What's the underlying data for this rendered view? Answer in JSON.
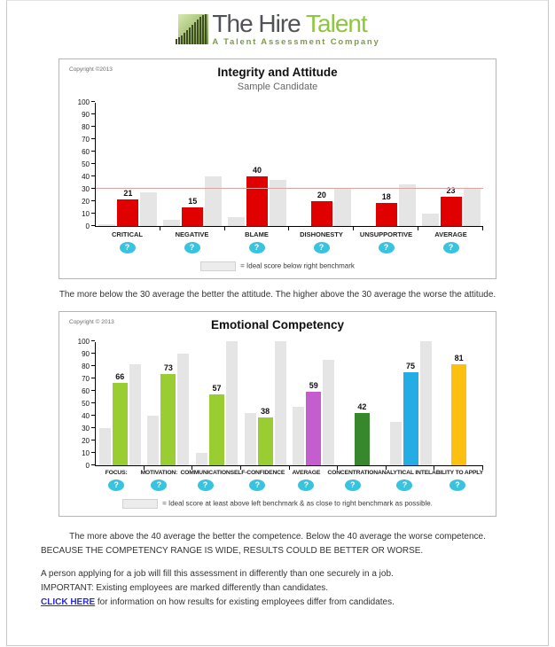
{
  "page": {
    "logo": {
      "title_primary": "The Hire",
      "title_accent": "Talent",
      "subtitle": "A Talent Assessment Company"
    },
    "help_icon_glyph": "?",
    "notes": {
      "attitude": "The more below the 30 average the better the attitude. The higher above the 30 average the worse the attitude.",
      "competence": "The more above the 40 average the better the competence. Below the 40 average the worse competence.",
      "range": "BECAUSE THE COMPETENCY RANGE IS WIDE, RESULTS COULD BE BETTER OR WORSE.",
      "applying": "A person applying for a job will fill this assessment in differently than one securely in a job.",
      "important": "IMPORTANT: Existing employees are marked differently than candidates.",
      "link_text": "CLICK HERE",
      "link_rest": " for information on how results for existing employees differ from candidates."
    },
    "colors": {
      "accent_green": "#8dc63f",
      "score_red": "#e10000",
      "benchmark_gray": "#e5e5e5",
      "help_cyan": "#38c3de",
      "link_blue": "#2b2bd4",
      "benchmark_line_pink": "#dba4a4"
    }
  },
  "chart_data": [
    {
      "type": "bar",
      "copyright": "Copyright ©2013",
      "title": "Integrity and Attitude",
      "subtitle": "Sample Candidate",
      "categories": [
        "CRITICAL",
        "NEGATIVE",
        "BLAME",
        "DISHONESTY",
        "UNSUPPORTIVE",
        "AVERAGE"
      ],
      "series": [
        {
          "name": "left benchmark",
          "color": "#e5e5e5",
          "values": [
            1,
            5,
            7,
            0,
            0,
            10
          ]
        },
        {
          "name": "candidate score",
          "color": "#e10000",
          "values": [
            21,
            15,
            40,
            20,
            18,
            23
          ]
        },
        {
          "name": "right benchmark",
          "color": "#e5e5e5",
          "values": [
            27,
            40,
            37,
            30,
            33,
            30
          ]
        }
      ],
      "value_labels": [
        21,
        15,
        40,
        20,
        18,
        23
      ],
      "benchmark_line": 30,
      "ylim": [
        0,
        100
      ],
      "ytick_step": 10,
      "grid": false,
      "legend": "= Ideal score below right benchmark",
      "legend_position": "bottom"
    },
    {
      "type": "bar",
      "copyright": "Copyright © 2013",
      "title": "Emotional Competency",
      "subtitle": "",
      "categories": [
        "FOCUS:",
        "MOTIVATION:",
        "COMMUNICATION",
        "SELF-CONFIDENCE",
        "AVERAGE",
        "CONCENTRATION",
        "ANALYTICAL INTEL",
        "ABILITY TO APPLY"
      ],
      "series": [
        {
          "name": "left benchmark",
          "color": "#e5e5e5",
          "values": [
            30,
            40,
            10,
            42,
            47,
            0,
            35,
            0
          ]
        },
        {
          "name": "candidate score",
          "colors": [
            "#9acd32",
            "#9acd32",
            "#9acd32",
            "#9acd32",
            "#c45ecf",
            "#37872d",
            "#24ade4",
            "#fdc010"
          ],
          "values": [
            66,
            73,
            57,
            38,
            59,
            42,
            75,
            81
          ]
        },
        {
          "name": "right benchmark",
          "color": "#e5e5e5",
          "values": [
            81,
            90,
            100,
            100,
            85,
            0,
            100,
            0
          ]
        }
      ],
      "value_labels": [
        66,
        73,
        57,
        38,
        59,
        42,
        75,
        81
      ],
      "ylim": [
        0,
        100
      ],
      "ytick_step": 10,
      "grid": false,
      "legend": "= Ideal score at least above left benchmark & as close to right benchmark as possible.",
      "legend_position": "bottom"
    }
  ]
}
